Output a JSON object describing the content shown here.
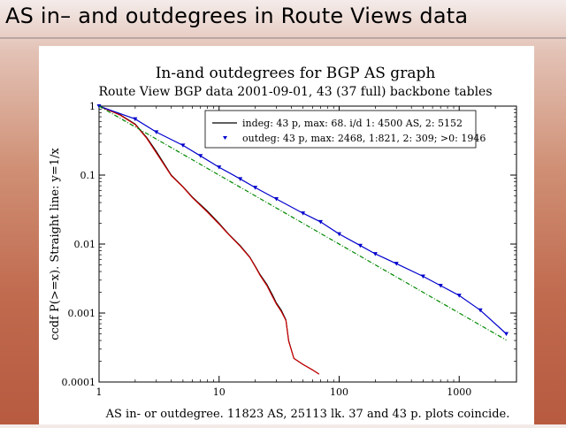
{
  "slide": {
    "title": "AS in– and outdegrees in Route Views data"
  },
  "chart_data": {
    "type": "line",
    "title": "In-and outdegrees for BGP AS graph",
    "subtitle": "Route View BGP data 2001-09-01, 43 (37 full) backbone tables",
    "xlabel": "AS in- or outdegree. 11823 AS, 25113 lk. 37 and 43 p. plots coincide.",
    "ylabel": "ccdf P(>=x). Straight line: y=1/x",
    "x_scale": "log",
    "y_scale": "log",
    "xlim": [
      1,
      3000
    ],
    "ylim": [
      0.0001,
      1
    ],
    "x_ticks": [
      1,
      10,
      100,
      1000
    ],
    "x_tick_labels": [
      "1",
      "10",
      "100",
      "1000"
    ],
    "y_ticks": [
      0.0001,
      0.001,
      0.01,
      0.1,
      1
    ],
    "y_tick_labels": [
      "0.0001",
      "0.001",
      "0.01",
      "0.1",
      "1"
    ],
    "legend_position": "top-right",
    "series": [
      {
        "name": "indeg: 43 p, max: 68. i/d 1: 4500 AS, 2: 5152",
        "color": "#000000",
        "style": "line",
        "x": [
          1,
          1.5,
          2,
          2.5,
          3,
          4,
          5,
          6,
          8,
          10,
          12,
          15,
          18,
          20,
          22,
          25,
          28,
          30,
          33,
          36,
          38,
          42,
          50,
          60,
          68
        ],
        "y": [
          1,
          0.75,
          0.55,
          0.35,
          0.22,
          0.1,
          0.068,
          0.048,
          0.03,
          0.02,
          0.014,
          0.0095,
          0.0065,
          0.0048,
          0.0036,
          0.0026,
          0.0018,
          0.0014,
          0.0011,
          0.0008,
          0.0004,
          0.00022,
          0.00018,
          0.00015,
          0.00013
        ]
      },
      {
        "name": "",
        "color": "#cc0000",
        "style": "line",
        "x": [
          1,
          1.5,
          2,
          2.5,
          3,
          4,
          5,
          6,
          8,
          10,
          12,
          15,
          18,
          20,
          22,
          25,
          28,
          30,
          33,
          36,
          38,
          42,
          50,
          60,
          68
        ],
        "y": [
          1,
          0.74,
          0.54,
          0.34,
          0.21,
          0.098,
          0.067,
          0.047,
          0.029,
          0.0195,
          0.0138,
          0.0093,
          0.0064,
          0.0047,
          0.0035,
          0.0025,
          0.0017,
          0.00135,
          0.00105,
          0.00078,
          0.00039,
          0.00022,
          0.00018,
          0.00015,
          0.00013
        ]
      },
      {
        "name": "outdeg: 43 p, max: 2468, 1:821, 2: 309; >0: 1946",
        "color": "#0000cc",
        "style": "line-markers",
        "x": [
          1,
          2,
          3,
          5,
          7,
          10,
          15,
          20,
          30,
          50,
          70,
          100,
          150,
          200,
          300,
          500,
          700,
          1000,
          1500,
          2468
        ],
        "y": [
          1,
          0.65,
          0.42,
          0.27,
          0.19,
          0.13,
          0.088,
          0.066,
          0.045,
          0.028,
          0.021,
          0.014,
          0.0095,
          0.0072,
          0.0052,
          0.0034,
          0.0025,
          0.0018,
          0.0011,
          0.0005
        ]
      },
      {
        "name": "",
        "color": "#008800",
        "style": "dashed",
        "x": [
          1,
          2468
        ],
        "y": [
          1,
          0.000405
        ]
      }
    ]
  }
}
